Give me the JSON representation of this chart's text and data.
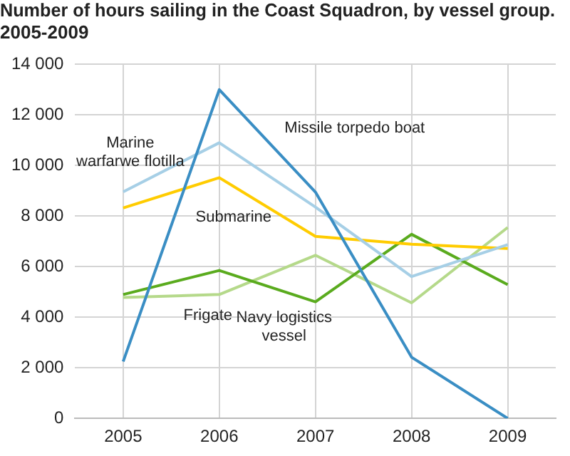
{
  "chart_data": {
    "type": "line",
    "title": "Number of hours sailing in the Coast Squadron, by vessel group. 2005-2009",
    "categories": [
      "2005",
      "2006",
      "2007",
      "2008",
      "2009"
    ],
    "series": [
      {
        "name": "Missile torpedo boat",
        "color": "#3a8ec4",
        "values": [
          2250,
          13000,
          8950,
          2420,
          0
        ]
      },
      {
        "name": "Marine warfarwe flotilla",
        "color": "#a6cfe6",
        "values": [
          8960,
          10900,
          8360,
          5610,
          6870
        ]
      },
      {
        "name": "Submarine",
        "color": "#ffcc00",
        "values": [
          8320,
          9520,
          7200,
          6890,
          6720
        ]
      },
      {
        "name": "Navy logistics vessel",
        "color": "#5aab1e",
        "values": [
          4900,
          5850,
          4610,
          7280,
          5290
        ]
      },
      {
        "name": "Frigate",
        "color": "#b5d98a",
        "values": [
          4780,
          4900,
          6450,
          4570,
          7550
        ]
      }
    ],
    "ylim": [
      0,
      14000
    ],
    "yticks": [
      {
        "value": 0,
        "label": "0"
      },
      {
        "value": 2000,
        "label": "2 000"
      },
      {
        "value": 4000,
        "label": "4 000"
      },
      {
        "value": 6000,
        "label": "6 000"
      },
      {
        "value": 8000,
        "label": "8 000"
      },
      {
        "value": 10000,
        "label": "10 000"
      },
      {
        "value": 12000,
        "label": "12 000"
      },
      {
        "value": 14000,
        "label": "14 000"
      }
    ],
    "grid": true,
    "legend": false,
    "marker": "none",
    "line_style": "solid"
  }
}
